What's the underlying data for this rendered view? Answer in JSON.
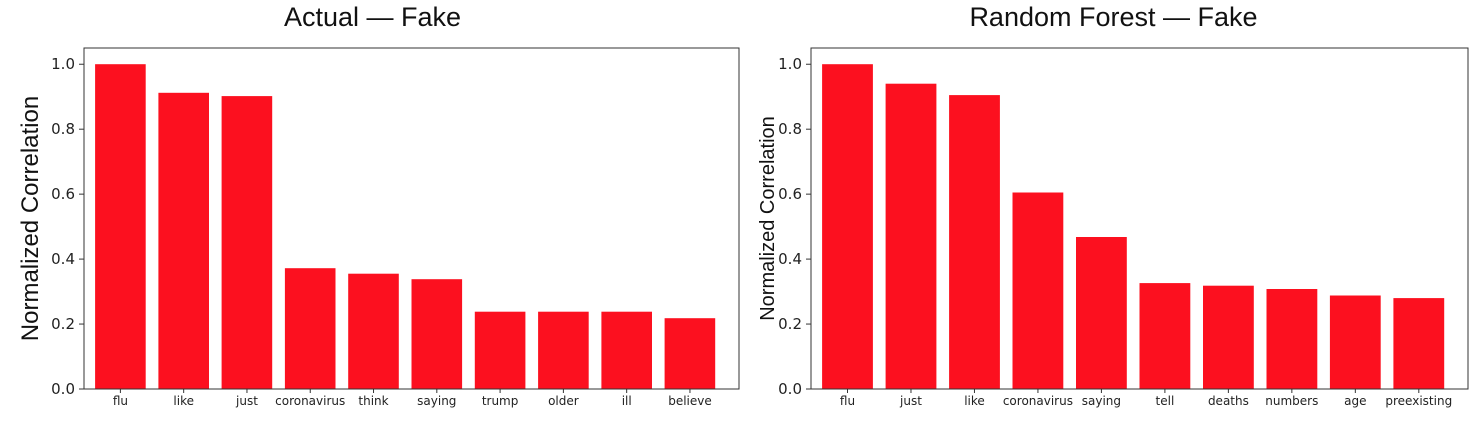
{
  "chart_data": [
    {
      "type": "bar",
      "title": "Actual — Fake",
      "xlabel": "",
      "ylabel": "Normalized Correlation",
      "categories": [
        "flu",
        "like",
        "just",
        "coronavirus",
        "think",
        "saying",
        "trump",
        "older",
        "ill",
        "believe"
      ],
      "values": [
        1.0,
        0.912,
        0.902,
        0.372,
        0.355,
        0.338,
        0.238,
        0.238,
        0.238,
        0.218
      ],
      "ylim": [
        0,
        1.05
      ],
      "yticks": [
        "0.0",
        "0.2",
        "0.4",
        "0.6",
        "0.8",
        "1.0"
      ],
      "grid": false,
      "bar_color": "#fc101f"
    },
    {
      "type": "bar",
      "title": "Random Forest — Fake",
      "xlabel": "",
      "ylabel": "Normalized Correlation",
      "categories": [
        "flu",
        "just",
        "like",
        "coronavirus",
        "saying",
        "tell",
        "deaths",
        "numbers",
        "age",
        "preexisting"
      ],
      "values": [
        1.0,
        0.94,
        0.905,
        0.605,
        0.468,
        0.326,
        0.318,
        0.308,
        0.288,
        0.28
      ],
      "ylim": [
        0,
        1.05
      ],
      "yticks": [
        "0.0",
        "0.2",
        "0.4",
        "0.6",
        "0.8",
        "1.0"
      ],
      "grid": false,
      "bar_color": "#fc101f"
    }
  ]
}
